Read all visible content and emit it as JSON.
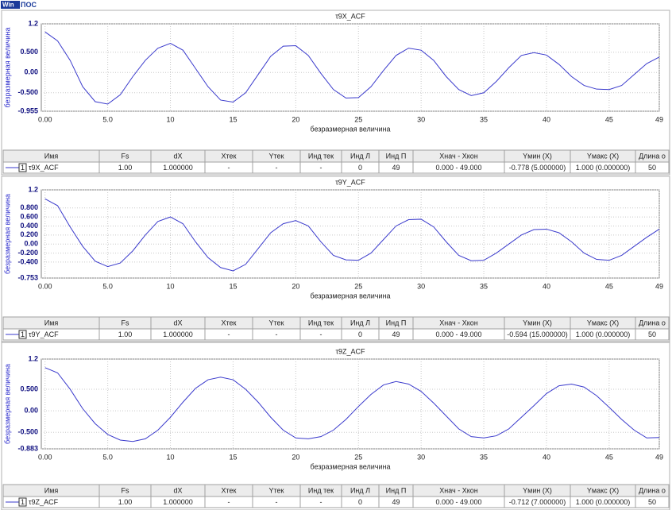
{
  "logo": {
    "left": "Win",
    "right": "ПОС"
  },
  "chart_data": [
    {
      "type": "line",
      "title": "τ9X_ACF",
      "x_label": "безразмерная величина",
      "y_label": "безразмерная величина",
      "x": [
        0,
        1,
        2,
        3,
        4,
        5,
        6,
        7,
        8,
        9,
        10,
        11,
        12,
        13,
        14,
        15,
        16,
        17,
        18,
        19,
        20,
        21,
        22,
        23,
        24,
        25,
        26,
        27,
        28,
        29,
        30,
        31,
        32,
        33,
        34,
        35,
        36,
        37,
        38,
        39,
        40,
        41,
        42,
        43,
        44,
        45,
        46,
        47,
        48,
        49
      ],
      "series": [
        {
          "name": "τ9X_ACF",
          "color": "#3a3acc",
          "values": [
            1.0,
            0.78,
            0.3,
            -0.35,
            -0.72,
            -0.778,
            -0.55,
            -0.1,
            0.3,
            0.6,
            0.72,
            0.55,
            0.1,
            -0.35,
            -0.68,
            -0.73,
            -0.5,
            -0.05,
            0.4,
            0.65,
            0.66,
            0.42,
            -0.02,
            -0.42,
            -0.63,
            -0.62,
            -0.35,
            0.05,
            0.42,
            0.6,
            0.55,
            0.3,
            -0.1,
            -0.42,
            -0.57,
            -0.5,
            -0.22,
            0.12,
            0.42,
            0.49,
            0.43,
            0.2,
            -0.1,
            -0.32,
            -0.41,
            -0.42,
            -0.32,
            -0.05,
            0.22,
            0.38
          ]
        }
      ],
      "xlim": [
        -0.3,
        49
      ],
      "xticks": [
        {
          "value": 0,
          "label": "0.00"
        },
        {
          "value": 5,
          "label": "5.0"
        },
        10,
        15,
        20,
        25,
        30,
        35,
        40,
        45,
        49
      ],
      "ylim": [
        -0.955,
        1.2
      ],
      "yticks": [
        -0.955,
        {
          "value": -0.5,
          "label": "-0.500"
        },
        {
          "value": 0,
          "label": "0.00"
        },
        {
          "value": 0.5,
          "label": "0.500"
        },
        1.2
      ],
      "grid": true
    },
    {
      "type": "line",
      "title": "τ9Y_ACF",
      "x_label": "безразмерная величина",
      "y_label": "безразмерная величина",
      "x": [
        0,
        1,
        2,
        3,
        4,
        5,
        6,
        7,
        8,
        9,
        10,
        11,
        12,
        13,
        14,
        15,
        16,
        17,
        18,
        19,
        20,
        21,
        22,
        23,
        24,
        25,
        26,
        27,
        28,
        29,
        30,
        31,
        32,
        33,
        34,
        35,
        36,
        37,
        38,
        39,
        40,
        41,
        42,
        43,
        44,
        45,
        46,
        47,
        48,
        49
      ],
      "series": [
        {
          "name": "τ9Y_ACF",
          "color": "#3a3acc",
          "values": [
            1.0,
            0.85,
            0.38,
            -0.05,
            -0.38,
            -0.5,
            -0.42,
            -0.15,
            0.2,
            0.5,
            0.6,
            0.45,
            0.05,
            -0.3,
            -0.52,
            -0.594,
            -0.45,
            -0.1,
            0.25,
            0.45,
            0.52,
            0.4,
            0.05,
            -0.25,
            -0.35,
            -0.36,
            -0.2,
            0.1,
            0.4,
            0.54,
            0.55,
            0.38,
            0.05,
            -0.25,
            -0.37,
            -0.36,
            -0.2,
            0.0,
            0.2,
            0.32,
            0.33,
            0.25,
            0.05,
            -0.2,
            -0.34,
            -0.36,
            -0.25,
            -0.05,
            0.15,
            0.33
          ]
        }
      ],
      "xlim": [
        -0.3,
        49
      ],
      "xticks": [
        {
          "value": 0,
          "label": "0.00"
        },
        {
          "value": 5,
          "label": "5.0"
        },
        10,
        15,
        20,
        25,
        30,
        35,
        40,
        45,
        49
      ],
      "ylim": [
        -0.753,
        1.2
      ],
      "yticks": [
        -0.753,
        {
          "value": -0.4,
          "label": "-0.400"
        },
        {
          "value": -0.2,
          "label": "-0.200"
        },
        {
          "value": 0,
          "label": "0.00"
        },
        {
          "value": 0.2,
          "label": "0.200"
        },
        {
          "value": 0.4,
          "label": "0.400"
        },
        {
          "value": 0.6,
          "label": "0.600"
        },
        {
          "value": 0.8,
          "label": "0.800"
        },
        1.2
      ],
      "grid": true
    },
    {
      "type": "line",
      "title": "τ9Z_ACF",
      "x_label": "безразмерная величина",
      "y_label": "безразмерная величина",
      "x": [
        0,
        1,
        2,
        3,
        4,
        5,
        6,
        7,
        8,
        9,
        10,
        11,
        12,
        13,
        14,
        15,
        16,
        17,
        18,
        19,
        20,
        21,
        22,
        23,
        24,
        25,
        26,
        27,
        28,
        29,
        30,
        31,
        32,
        33,
        34,
        35,
        36,
        37,
        38,
        39,
        40,
        41,
        42,
        43,
        44,
        45,
        46,
        47,
        48,
        49
      ],
      "series": [
        {
          "name": "τ9Z_ACF",
          "color": "#3a3acc",
          "values": [
            1.0,
            0.88,
            0.5,
            0.05,
            -0.3,
            -0.55,
            -0.68,
            -0.712,
            -0.65,
            -0.45,
            -0.15,
            0.2,
            0.52,
            0.72,
            0.78,
            0.72,
            0.5,
            0.2,
            -0.15,
            -0.45,
            -0.63,
            -0.65,
            -0.6,
            -0.45,
            -0.2,
            0.1,
            0.38,
            0.6,
            0.68,
            0.62,
            0.45,
            0.18,
            -0.12,
            -0.42,
            -0.6,
            -0.63,
            -0.58,
            -0.42,
            -0.15,
            0.12,
            0.4,
            0.58,
            0.62,
            0.55,
            0.35,
            0.08,
            -0.2,
            -0.45,
            -0.63,
            -0.62
          ]
        }
      ],
      "xlim": [
        -0.3,
        49
      ],
      "xticks": [
        {
          "value": 0,
          "label": "0.00"
        },
        {
          "value": 5,
          "label": "5.0"
        },
        10,
        15,
        20,
        25,
        30,
        35,
        40,
        45,
        49
      ],
      "ylim": [
        -0.883,
        1.2
      ],
      "yticks": [
        -0.883,
        {
          "value": -0.5,
          "label": "-0.500"
        },
        {
          "value": 0,
          "label": "0.00"
        },
        {
          "value": 0.5,
          "label": "0.500"
        },
        1.2
      ],
      "grid": true
    }
  ],
  "tables": [
    {
      "header": [
        "Имя",
        "Fs",
        "dX",
        "Xтек",
        "Yтек",
        "Инд тек",
        "Инд Л",
        "Инд П",
        "Xнач - Xкон",
        "Yмин (X)",
        "Yмакс (X)",
        "Длина о"
      ],
      "index": "1",
      "row": [
        "1.00",
        "1.000000",
        "-",
        "-",
        "-",
        "0",
        "49",
        "0.000 - 49.000",
        "-0.778 (5.000000)",
        "1.000 (0.000000)",
        "50"
      ]
    },
    {
      "header": [
        "Имя",
        "Fs",
        "dX",
        "Xтек",
        "Yтек",
        "Инд тек",
        "Инд Л",
        "Инд П",
        "Xнач - Xкон",
        "Yмин (X)",
        "Yмакс (X)",
        "Длина о"
      ],
      "index": "1",
      "row": [
        "1.00",
        "1.000000",
        "-",
        "-",
        "-",
        "0",
        "49",
        "0.000 - 49.000",
        "-0.594 (15.000000)",
        "1.000 (0.000000)",
        "50"
      ]
    },
    {
      "header": [
        "Имя",
        "Fs",
        "dX",
        "Xтек",
        "Yтек",
        "Инд тек",
        "Инд Л",
        "Инд П",
        "Xнач - Xкон",
        "Yмин (X)",
        "Yмакс (X)",
        "Длина о"
      ],
      "index": "1",
      "row": [
        "1.00",
        "1.000000",
        "-",
        "-",
        "-",
        "0",
        "49",
        "0.000 - 49.000",
        "-0.712 (7.000000)",
        "1.000 (0.000000)",
        "50"
      ]
    }
  ]
}
